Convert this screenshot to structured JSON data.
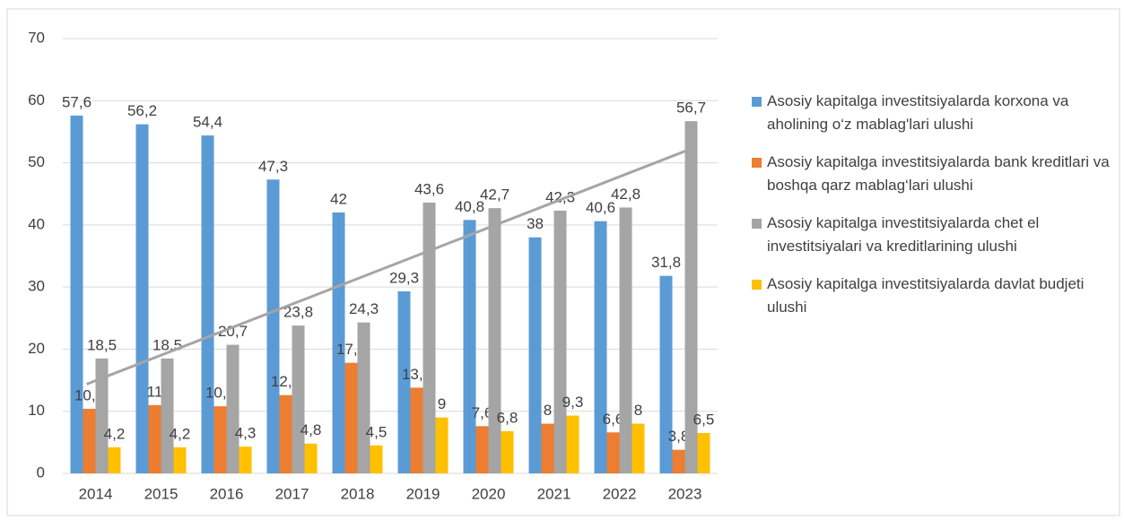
{
  "chart_data": {
    "type": "bar",
    "categories": [
      "2014",
      "2015",
      "2016",
      "2017",
      "2018",
      "2019",
      "2020",
      "2021",
      "2022",
      "2023"
    ],
    "ylim": [
      0,
      70
    ],
    "yticks": [
      0,
      10,
      20,
      30,
      40,
      50,
      60,
      70
    ],
    "grid": true,
    "legend": "right",
    "series": [
      {
        "name": "Asosiy kapitalga investitsiyalarda korxona va aholining o‘z mablag'lari ulushi",
        "color": "#5b9bd5",
        "values": [
          57.6,
          56.2,
          54.4,
          47.3,
          42,
          29.3,
          40.8,
          38,
          40.6,
          31.8
        ],
        "value_labels": [
          "57,6",
          "56,2",
          "54,4",
          "47,3",
          "42",
          "29,3",
          "40,8",
          "38",
          "40,6",
          "31,8"
        ]
      },
      {
        "name": "Asosiy kapitalga investitsiyalarda bank kreditlari va boshqa qarz mablag‘lari ulushi",
        "color": "#ed7d31",
        "values": [
          10.4,
          11,
          10.8,
          12.6,
          17.8,
          13.8,
          7.6,
          8,
          6.6,
          3.8
        ],
        "value_labels": [
          "10,4",
          "11",
          "10,8",
          "12,6",
          "17,8",
          "13,8",
          "7,6",
          "8",
          "6,6",
          "3,8"
        ]
      },
      {
        "name": "Asosiy kapitalga investitsiyalarda chet el investitsiyalari va kreditlarining ulushi",
        "color": "#a5a5a5",
        "values": [
          18.5,
          18.5,
          20.7,
          23.8,
          24.3,
          43.6,
          42.7,
          42.3,
          42.8,
          56.7
        ],
        "value_labels": [
          "18,5",
          "18,5",
          "20,7",
          "23,8",
          "24,3",
          "43,6",
          "42,7",
          "42,3",
          "42,8",
          "56,7"
        ],
        "trendline": "linear"
      },
      {
        "name": "Asosiy kapitalga investitsiyalarda davlat budjeti ulushi",
        "color": "#ffc000",
        "values": [
          4.2,
          4.2,
          4.3,
          4.8,
          4.5,
          9,
          6.8,
          9.3,
          8,
          6.5
        ],
        "value_labels": [
          "4,2",
          "4,2",
          "4,3",
          "4,8",
          "4,5",
          "9",
          "6,8",
          "9,3",
          "8",
          "6,5"
        ]
      }
    ]
  }
}
